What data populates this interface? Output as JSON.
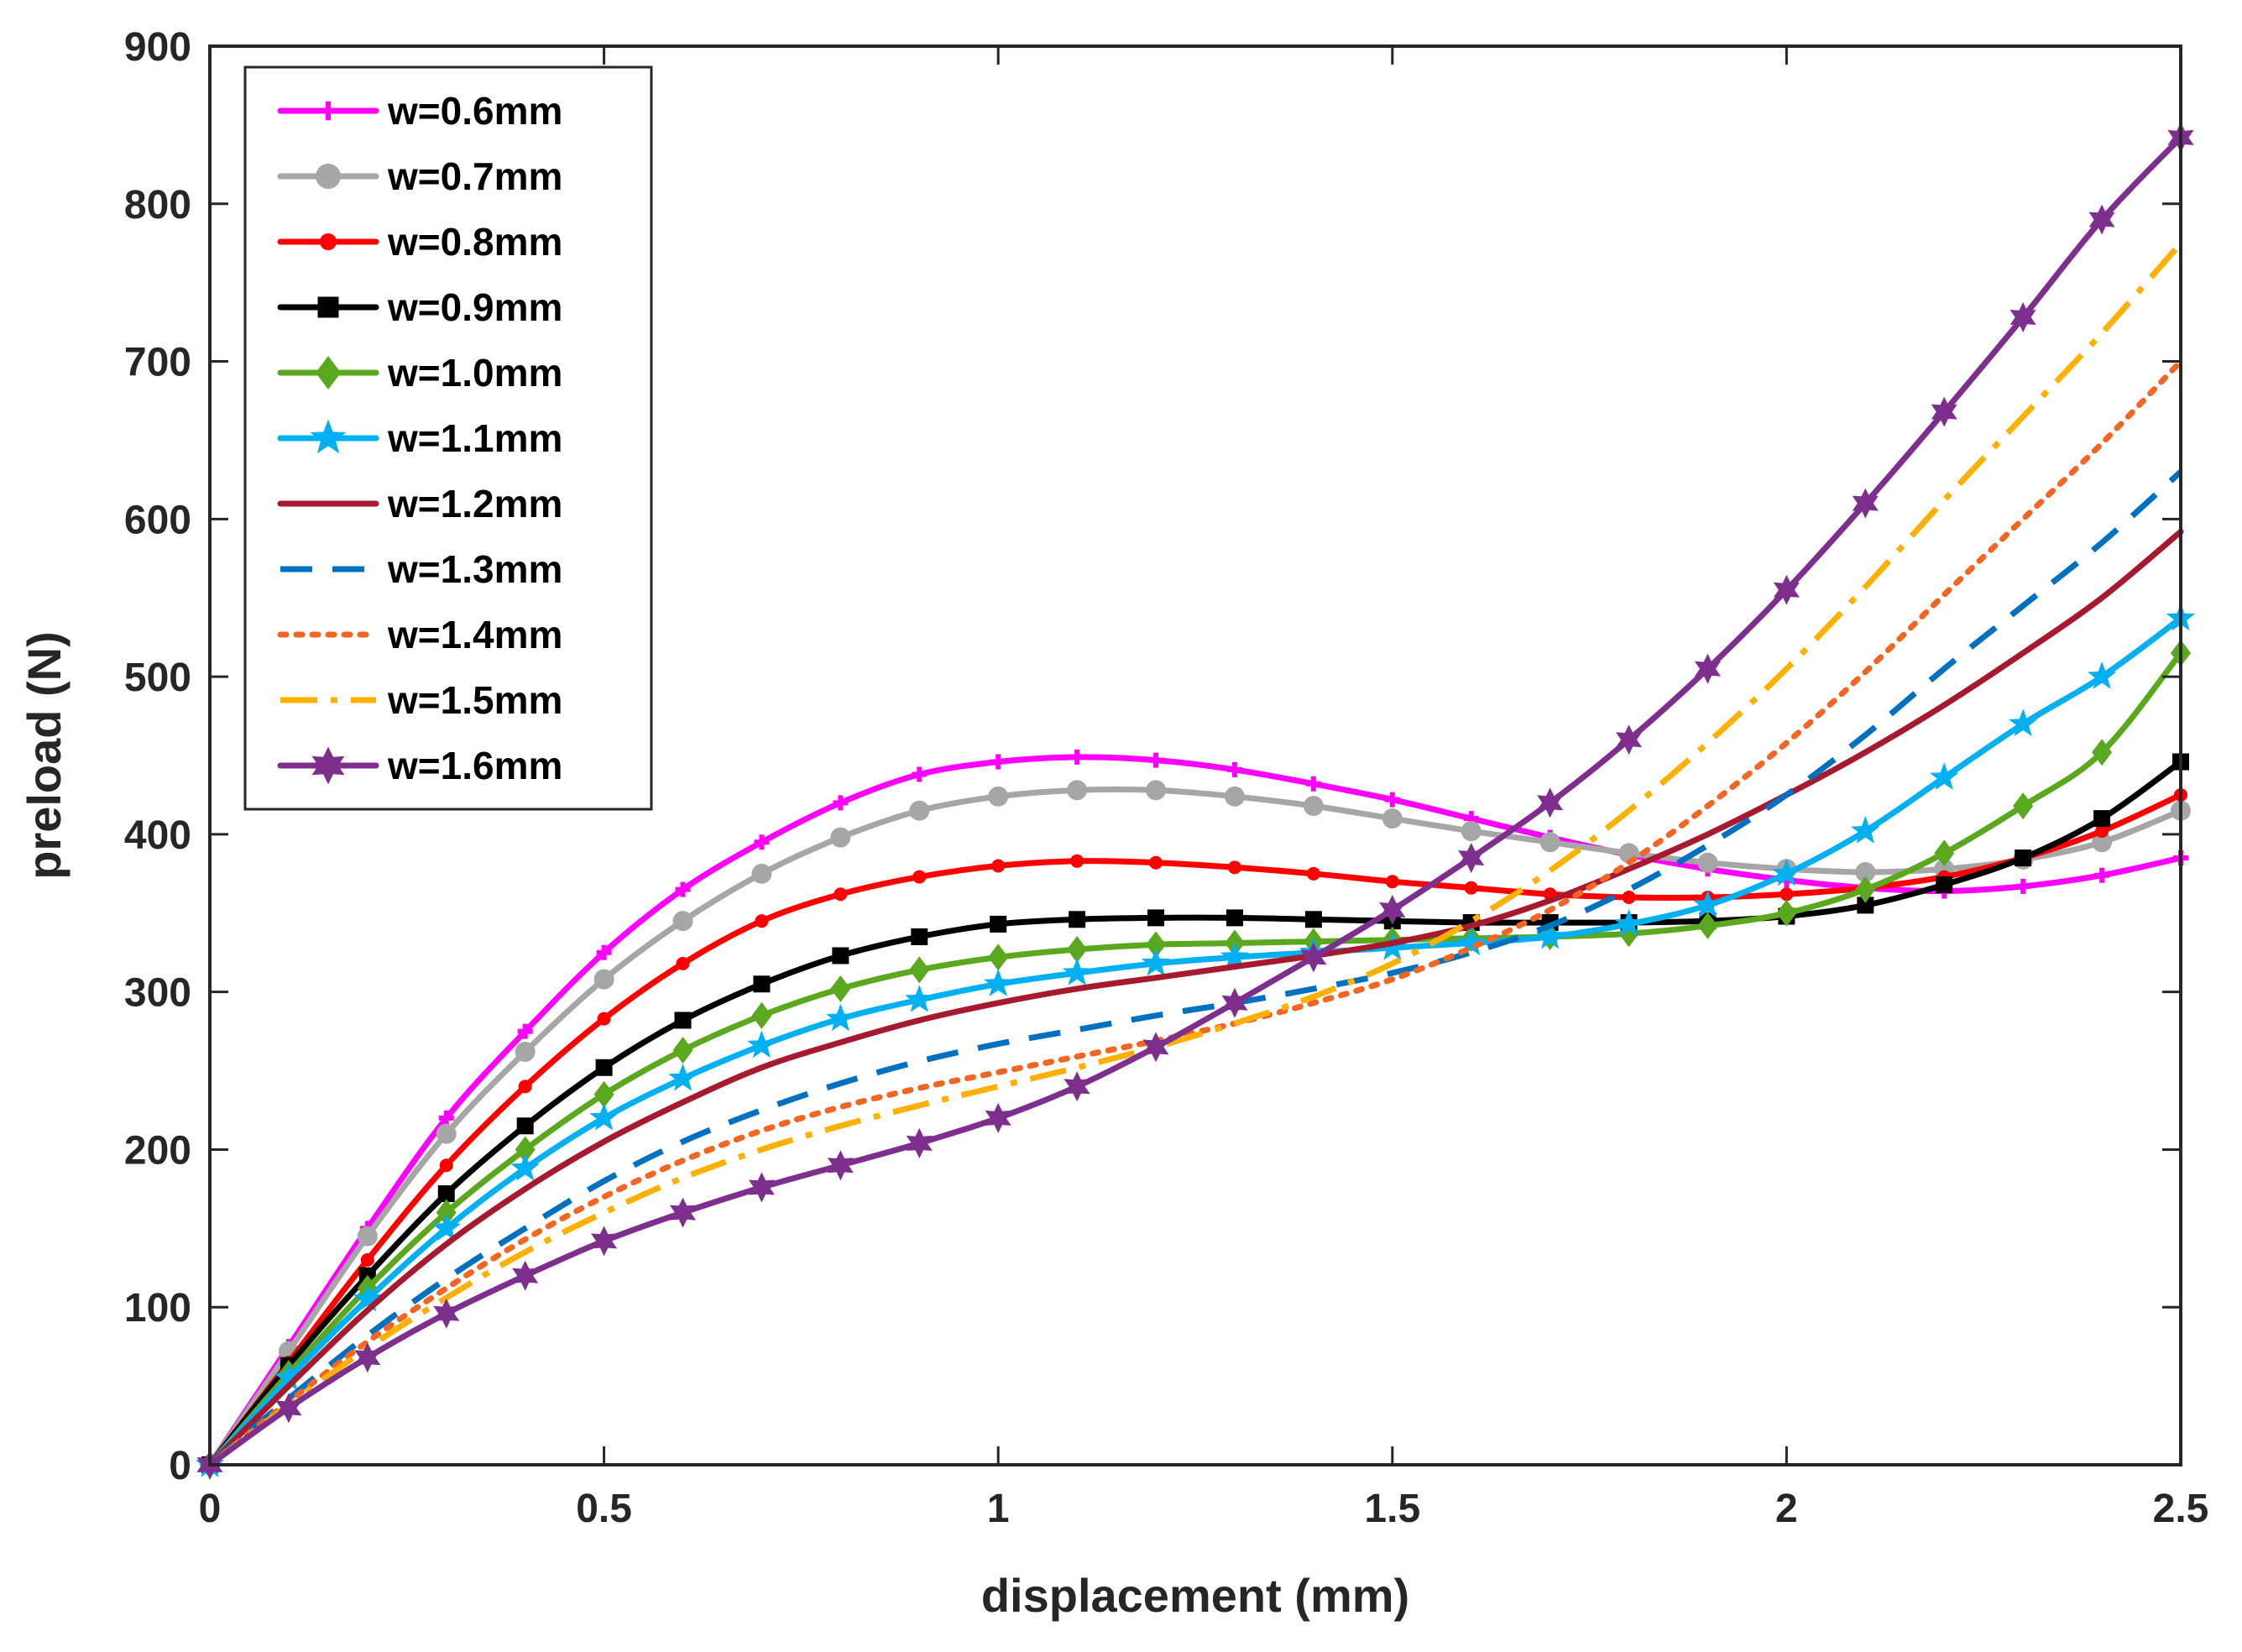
{
  "chart_data": {
    "type": "line",
    "title": "",
    "xlabel": "displacement (mm)",
    "ylabel": "preload (N)",
    "xlim": [
      0,
      2.5
    ],
    "ylim": [
      0,
      900
    ],
    "grid": false,
    "legend_position": "top-left",
    "x_ticks": [
      0,
      0.5,
      1,
      1.5,
      2,
      2.5
    ],
    "x_tick_labels": [
      "0",
      "0.5",
      "1",
      "1.5",
      "2",
      "2.5"
    ],
    "y_ticks": [
      0,
      100,
      200,
      300,
      400,
      500,
      600,
      700,
      800,
      900
    ],
    "y_tick_labels": [
      "0",
      "100",
      "200",
      "300",
      "400",
      "500",
      "600",
      "700",
      "800",
      "900"
    ],
    "x": [
      0,
      0.1,
      0.2,
      0.3,
      0.4,
      0.5,
      0.6,
      0.7,
      0.8,
      0.9,
      1.0,
      1.1,
      1.2,
      1.3,
      1.4,
      1.5,
      1.6,
      1.7,
      1.8,
      1.9,
      2.0,
      2.1,
      2.2,
      2.3,
      2.4,
      2.5
    ],
    "series": [
      {
        "name": "w=0.6mm",
        "color": "#FF00FF",
        "style": "solid",
        "marker": "plus",
        "values": [
          0,
          75,
          150,
          220,
          275,
          325,
          365,
          395,
          420,
          438,
          446,
          449,
          447,
          441,
          432,
          422,
          410,
          398,
          387,
          378,
          371,
          366,
          364,
          367,
          374,
          385
        ]
      },
      {
        "name": "w=0.7mm",
        "color": "#A6A6A6",
        "style": "solid",
        "marker": "circle",
        "values": [
          0,
          72,
          145,
          210,
          262,
          308,
          345,
          375,
          398,
          415,
          424,
          428,
          428,
          424,
          418,
          410,
          402,
          395,
          388,
          382,
          378,
          376,
          378,
          384,
          395,
          415
        ]
      },
      {
        "name": "w=0.8mm",
        "color": "#FF0000",
        "style": "solid",
        "marker": "dot",
        "values": [
          0,
          65,
          130,
          190,
          240,
          283,
          318,
          345,
          362,
          373,
          380,
          383,
          382,
          379,
          375,
          370,
          366,
          362,
          360,
          360,
          362,
          366,
          373,
          385,
          402,
          425
        ]
      },
      {
        "name": "w=0.9mm",
        "color": "#000000",
        "style": "solid",
        "marker": "square",
        "values": [
          0,
          63,
          120,
          172,
          215,
          252,
          282,
          305,
          323,
          335,
          343,
          346,
          347,
          347,
          346,
          345,
          344,
          344,
          344,
          345,
          348,
          355,
          368,
          385,
          410,
          446
        ]
      },
      {
        "name": "w=1.0mm",
        "color": "#5AA81E",
        "style": "solid",
        "marker": "diamond",
        "values": [
          0,
          58,
          112,
          160,
          200,
          235,
          263,
          285,
          302,
          314,
          322,
          327,
          330,
          331,
          332,
          333,
          334,
          335,
          337,
          342,
          350,
          365,
          388,
          418,
          452,
          515
        ]
      },
      {
        "name": "w=1.1mm",
        "color": "#00B0F0",
        "style": "solid",
        "marker": "star",
        "values": [
          0,
          55,
          105,
          150,
          188,
          220,
          245,
          266,
          283,
          295,
          305,
          312,
          318,
          322,
          325,
          328,
          331,
          335,
          343,
          355,
          375,
          402,
          436,
          470,
          500,
          537
        ]
      },
      {
        "name": "w=1.2mm",
        "color": "#A6192E",
        "style": "solid",
        "marker": "none",
        "values": [
          0,
          50,
          98,
          140,
          175,
          205,
          230,
          252,
          268,
          282,
          293,
          302,
          309,
          316,
          323,
          331,
          342,
          358,
          378,
          400,
          425,
          452,
          482,
          515,
          550,
          592
        ]
      },
      {
        "name": "w=1.3mm",
        "color": "#0070C0",
        "style": "dash",
        "marker": "none",
        "values": [
          0,
          42,
          82,
          118,
          150,
          180,
          205,
          225,
          242,
          256,
          267,
          276,
          285,
          293,
          302,
          312,
          325,
          342,
          365,
          393,
          425,
          463,
          505,
          545,
          585,
          630
        ]
      },
      {
        "name": "w=1.4mm",
        "color": "#F26522",
        "style": "dot",
        "marker": "none",
        "values": [
          0,
          40,
          78,
          112,
          143,
          170,
          193,
          212,
          227,
          239,
          249,
          259,
          269,
          280,
          293,
          308,
          328,
          352,
          382,
          418,
          458,
          503,
          552,
          600,
          648,
          700
        ]
      },
      {
        "name": "w=1.5mm",
        "color": "#FFB000",
        "style": "dashdot",
        "marker": "none",
        "values": [
          0,
          38,
          74,
          106,
          135,
          160,
          182,
          200,
          215,
          228,
          240,
          252,
          265,
          280,
          297,
          318,
          345,
          377,
          415,
          458,
          505,
          557,
          612,
          665,
          718,
          775
        ]
      },
      {
        "name": "w=1.6mm",
        "color": "#7E2F8E",
        "style": "solid",
        "marker": "hexagram",
        "values": [
          0,
          36,
          68,
          96,
          120,
          142,
          160,
          176,
          190,
          204,
          220,
          240,
          265,
          293,
          322,
          352,
          385,
          420,
          460,
          505,
          555,
          610,
          668,
          728,
          790,
          842
        ]
      }
    ]
  }
}
